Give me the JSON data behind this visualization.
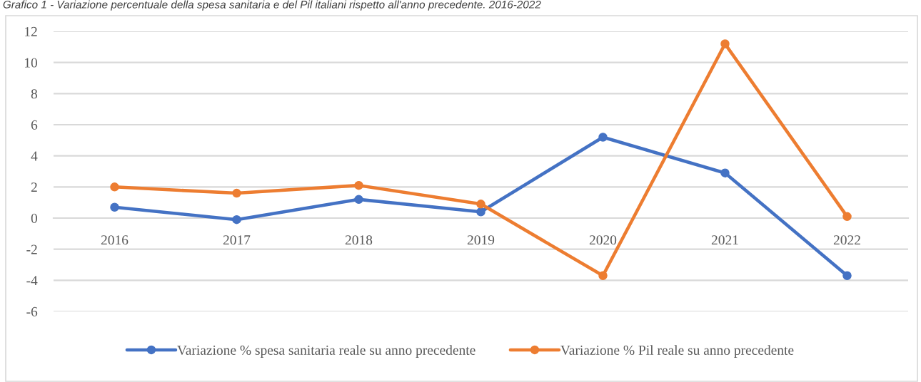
{
  "chart_data": {
    "type": "line",
    "title": "Grafico 1 - Variazione percentuale della spesa sanitaria e del Pil italiani rispetto all'anno precedente. 2016-2022",
    "categories": [
      "2016",
      "2017",
      "2018",
      "2019",
      "2020",
      "2021",
      "2022"
    ],
    "series": [
      {
        "name": "Variazione % spesa sanitaria reale su anno precedente",
        "color": "#4472c4",
        "values": [
          0.7,
          -0.1,
          1.2,
          0.4,
          5.2,
          2.9,
          -3.7
        ]
      },
      {
        "name": "Variazione % Pil reale su anno precedente",
        "color": "#ed7d31",
        "values": [
          2.0,
          1.6,
          2.1,
          0.9,
          -3.7,
          11.2,
          0.1
        ]
      }
    ],
    "ylim": [
      -6,
      12
    ],
    "yticks": [
      -6,
      -4,
      -2,
      0,
      2,
      4,
      6,
      8,
      10,
      12
    ],
    "grid": "y",
    "legend": "bottom",
    "marker": "circle",
    "line_style": "solid"
  }
}
